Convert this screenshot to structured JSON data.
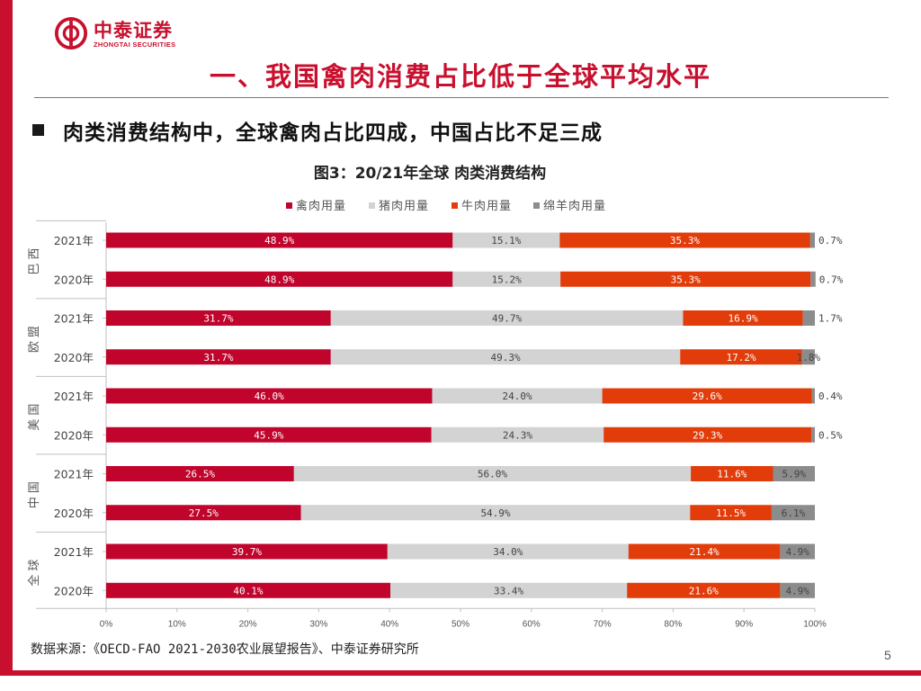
{
  "brand": {
    "name_cn": "中泰证券",
    "name_en": "ZHONGTAI SECURITIES",
    "color": "#c8102e"
  },
  "page_title": "一、我国禽肉消费占比低于全球平均水平",
  "bullet_heading": "肉类消费结构中，全球禽肉占比四成，中国占比不足三成",
  "source_note": "数据来源：《OECD-FAO 2021-2030农业展望报告》、中泰证券研究所",
  "page_number": "5",
  "chart_data": {
    "type": "stacked-bar-horizontal",
    "title": "图3：20/21年全球 肉类消费结构",
    "legend_position": "top",
    "xlim": [
      0,
      100
    ],
    "x_ticks": [
      "0%",
      "10%",
      "20%",
      "30%",
      "40%",
      "50%",
      "60%",
      "70%",
      "80%",
      "90%",
      "100%"
    ],
    "groups": [
      {
        "name": "巴西",
        "rows": [
          {
            "year": "2021年",
            "values": [
              48.9,
              15.1,
              35.3,
              0.7
            ]
          },
          {
            "year": "2020年",
            "values": [
              48.9,
              15.2,
              35.3,
              0.7
            ]
          }
        ]
      },
      {
        "name": "欧盟",
        "rows": [
          {
            "year": "2021年",
            "values": [
              31.7,
              49.7,
              16.9,
              1.7
            ]
          },
          {
            "year": "2020年",
            "values": [
              31.7,
              49.3,
              17.2,
              1.8
            ]
          }
        ]
      },
      {
        "name": "美国",
        "rows": [
          {
            "year": "2021年",
            "values": [
              46.0,
              24.0,
              29.6,
              0.4
            ]
          },
          {
            "year": "2020年",
            "values": [
              45.9,
              24.3,
              29.3,
              0.5
            ]
          }
        ]
      },
      {
        "name": "中国",
        "rows": [
          {
            "year": "2021年",
            "values": [
              26.5,
              56.0,
              11.6,
              5.9
            ]
          },
          {
            "year": "2020年",
            "values": [
              27.5,
              54.9,
              11.5,
              6.1
            ]
          }
        ]
      },
      {
        "name": "全球",
        "rows": [
          {
            "year": "2021年",
            "values": [
              39.7,
              34.0,
              21.4,
              4.9
            ]
          },
          {
            "year": "2020年",
            "values": [
              40.1,
              33.4,
              21.6,
              4.9
            ]
          }
        ]
      }
    ],
    "series": [
      {
        "name": "禽肉用量",
        "color": "#c0042c",
        "label_color": "#ffffff"
      },
      {
        "name": "猪肉用量",
        "color": "#d3d3d3",
        "label_color": "#444444"
      },
      {
        "name": "牛肉用量",
        "color": "#e23c0a",
        "label_color": "#ffffff"
      },
      {
        "name": "绵羊肉用量",
        "color": "#8c8c8c",
        "label_color": "#444444"
      }
    ]
  }
}
